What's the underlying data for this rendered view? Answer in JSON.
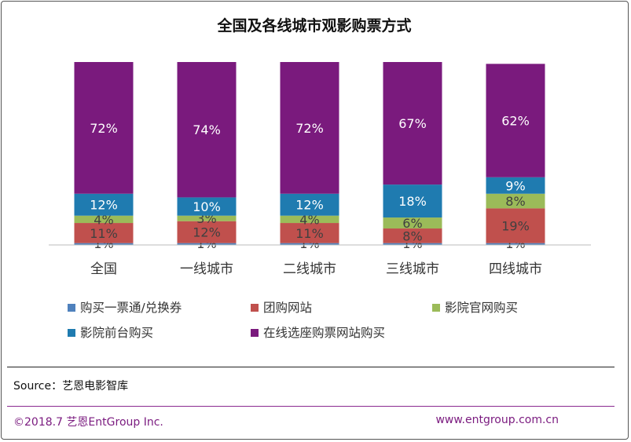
{
  "chart_data": {
    "type": "stacked-bar",
    "title": "全国及各线城市观影购票方式",
    "categories": [
      "全国",
      "一线城市",
      "二线城市",
      "三线城市",
      "四线城市"
    ],
    "series": [
      {
        "name": "购买一票通/兑换券",
        "color": "#4f81bd",
        "values": [
          1,
          1,
          1,
          1,
          1
        ],
        "labels": [
          "1%",
          "1%",
          "1%",
          "1%",
          "1%"
        ]
      },
      {
        "name": "团购网站",
        "color": "#c0504d",
        "values": [
          11,
          12,
          11,
          8,
          19
        ],
        "labels": [
          "11%",
          "12%",
          "11%",
          "8%",
          "19%"
        ]
      },
      {
        "name": "影院官网购买",
        "color": "#9bbb59",
        "values": [
          4,
          3,
          4,
          6,
          8
        ],
        "labels": [
          "4%",
          "3%",
          "4%",
          "6%",
          "8%"
        ]
      },
      {
        "name": "影院前台购买",
        "color": "#1f7bb0",
        "values": [
          12,
          10,
          12,
          18,
          9
        ],
        "labels": [
          "12%",
          "10%",
          "12%",
          "18%",
          "9%"
        ]
      },
      {
        "name": "在线选座购票网站购买",
        "color": "#7a1a7d",
        "values": [
          72,
          74,
          72,
          67,
          62
        ],
        "labels": [
          "72%",
          "74%",
          "72%",
          "67%",
          "62%"
        ]
      }
    ],
    "ylim": [
      0,
      100
    ],
    "legend": "bottom"
  },
  "source_text": "Source：艺恩电影智库",
  "footer": {
    "copyright": "©2018.7  艺恩EntGroup Inc.",
    "url": "www.entgroup.com.cn"
  }
}
